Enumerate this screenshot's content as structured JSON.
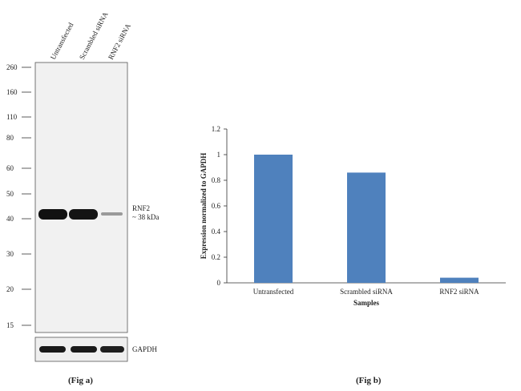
{
  "blot": {
    "lanes": [
      "Untransfected",
      "Scrambled siRNA",
      "RNF2  siRNA"
    ],
    "mw_markers": [
      "260",
      "160",
      "110",
      "80",
      "60",
      "50",
      "40",
      "30",
      "20",
      "15"
    ],
    "band_label_line1": "RNF2",
    "band_label_line2": "~ 38 kDa",
    "loading_control_label": "GAPDH",
    "caption": "(Fig a)"
  },
  "chart_data": {
    "type": "bar",
    "title": "",
    "categories": [
      "Untransfected",
      "Scrambled siRNA",
      "RNF2 siRNA"
    ],
    "values": [
      1.0,
      0.86,
      0.04
    ],
    "xlabel": "Samples",
    "ylabel": "Expression  normalized to GAPDH",
    "ylim": [
      0,
      1.2
    ],
    "yticks": [
      "0",
      "0.2",
      "0.4",
      "0.6",
      "0.8",
      "1",
      "1.2"
    ],
    "bar_color": "#4f81bd",
    "caption": "(Fig b)"
  }
}
